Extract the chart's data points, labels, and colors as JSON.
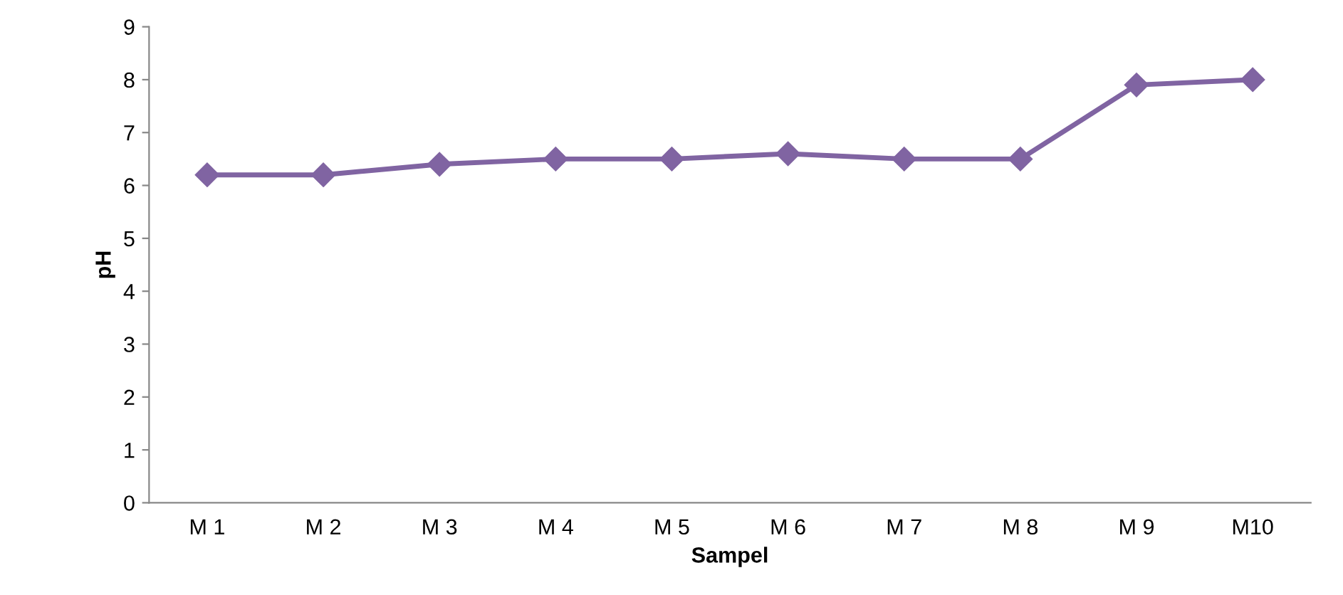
{
  "chart_data": {
    "type": "line",
    "xlabel": "Sampel",
    "ylabel": "pH",
    "categories": [
      "M 1",
      "M 2",
      "M 3",
      "M 4",
      "M 5",
      "M 6",
      "M 7",
      "M 8",
      "M 9",
      "M10"
    ],
    "series": [
      {
        "color": "#8064a2",
        "values": [
          6.2,
          6.2,
          6.4,
          6.5,
          6.5,
          6.6,
          6.5,
          6.5,
          7.9,
          8.0
        ]
      }
    ],
    "ylim": [
      0,
      9
    ],
    "yticks": [
      0,
      1,
      2,
      3,
      4,
      5,
      6,
      7,
      8,
      9
    ],
    "grid": false,
    "legend": false,
    "marker": "diamond",
    "line_style": "solid"
  }
}
